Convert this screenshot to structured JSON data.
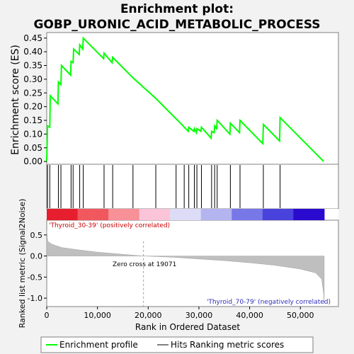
{
  "chart_data": {
    "type": "line",
    "title": "Enrichment plot: GOBP_URONIC_ACID_METABOLIC_PROCESS",
    "xlabel": "Rank in Ordered Dataset",
    "es_panel": {
      "ylabel": "Enrichment score (ES)",
      "yticks": [
        "0.00",
        "0.05",
        "0.10",
        "0.15",
        "0.20",
        "0.25",
        "0.30",
        "0.35",
        "0.40",
        "0.45"
      ],
      "ylim": [
        -0.01,
        0.47
      ],
      "grid": false
    },
    "metric_panel": {
      "ylabel": "Ranked list metric (Signal2Noise)",
      "yticks": [
        "0.5",
        "0.0",
        "-0.5",
        "-1.0"
      ],
      "ylim": [
        -1.2,
        0.85
      ],
      "zero_cross_label": "Zero cross at 19071",
      "zero_cross": 19071,
      "positive_label": "'Thyroid_30-39' (positively correlated)",
      "negative_label": "'Thyroid_70-79' (negatively correlated)",
      "metric_curve": [
        [
          0,
          0.6
        ],
        [
          200,
          0.35
        ],
        [
          1000,
          0.28
        ],
        [
          3000,
          0.2
        ],
        [
          6000,
          0.15
        ],
        [
          10000,
          0.09
        ],
        [
          15000,
          0.04
        ],
        [
          19071,
          0.0
        ],
        [
          25000,
          -0.03
        ],
        [
          30000,
          -0.07
        ],
        [
          35000,
          -0.11
        ],
        [
          40000,
          -0.16
        ],
        [
          45000,
          -0.22
        ],
        [
          50000,
          -0.31
        ],
        [
          53000,
          -0.4
        ],
        [
          54200,
          -0.55
        ],
        [
          54600,
          -0.9
        ],
        [
          54700,
          -1.12
        ]
      ]
    },
    "x_axis": {
      "xlim": [
        0,
        57500
      ],
      "xticks": [
        "0",
        "10,000",
        "20,000",
        "30,000",
        "40,000",
        "50,000"
      ]
    },
    "hits": [
      150,
      600,
      2300,
      2800,
      4800,
      5200,
      6500,
      7200,
      11300,
      13000,
      17000,
      21500,
      25500,
      27100,
      28000,
      29100,
      29600,
      30500,
      32500,
      33100,
      33600,
      36200,
      38100,
      42700,
      46000
    ],
    "es_curve": [
      [
        0,
        0.0
      ],
      [
        150,
        0.13
      ],
      [
        600,
        0.125
      ],
      [
        700,
        0.24
      ],
      [
        2200,
        0.21
      ],
      [
        2300,
        0.29
      ],
      [
        2800,
        0.28
      ],
      [
        2900,
        0.35
      ],
      [
        4700,
        0.315
      ],
      [
        4800,
        0.365
      ],
      [
        5200,
        0.36
      ],
      [
        5300,
        0.41
      ],
      [
        6400,
        0.39
      ],
      [
        6500,
        0.425
      ],
      [
        7100,
        0.41
      ],
      [
        7200,
        0.45
      ],
      [
        11200,
        0.375
      ],
      [
        11300,
        0.395
      ],
      [
        12900,
        0.36
      ],
      [
        13000,
        0.38
      ],
      [
        17000,
        0.305
      ],
      [
        21500,
        0.23
      ],
      [
        26900,
        0.13
      ],
      [
        27100,
        0.125
      ],
      [
        27900,
        0.11
      ],
      [
        28000,
        0.125
      ],
      [
        29000,
        0.11
      ],
      [
        29100,
        0.12
      ],
      [
        29500,
        0.105
      ],
      [
        29600,
        0.12
      ],
      [
        30400,
        0.11
      ],
      [
        30500,
        0.125
      ],
      [
        32400,
        0.085
      ],
      [
        32500,
        0.11
      ],
      [
        33000,
        0.105
      ],
      [
        33100,
        0.13
      ],
      [
        33500,
        0.12
      ],
      [
        33600,
        0.15
      ],
      [
        36100,
        0.1
      ],
      [
        36200,
        0.14
      ],
      [
        38000,
        0.105
      ],
      [
        38100,
        0.15
      ],
      [
        42600,
        0.065
      ],
      [
        42700,
        0.135
      ],
      [
        45900,
        0.075
      ],
      [
        46000,
        0.16
      ],
      [
        54600,
        0.0
      ]
    ],
    "legend": {
      "position": "bottom",
      "entries": [
        "Enrichment profile",
        "Hits",
        "Ranking metric scores"
      ]
    },
    "colors": {
      "es_line": "#00ff00",
      "hit_line": "#000000",
      "metric_fill": "#bfbfbf",
      "plot_bg": "#ffffff",
      "page_bg": "#f2f2f2",
      "heat_bands": [
        "#e61e2d",
        "#f0585e",
        "#f79097",
        "#fbc4d9",
        "#dcdcf7",
        "#b4b4f0",
        "#7777e7",
        "#4a42dc",
        "#2a0acf"
      ]
    }
  }
}
